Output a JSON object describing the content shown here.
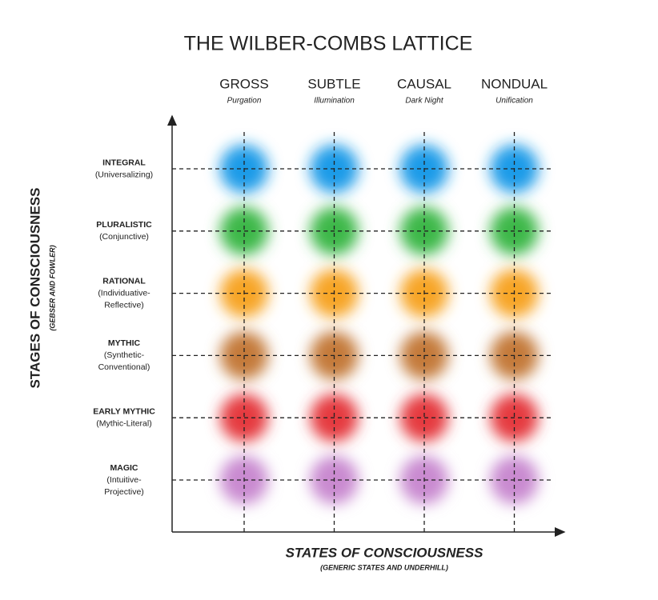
{
  "title": "THE WILBER-COMBS LATTICE",
  "columns": [
    {
      "name": "GROSS",
      "subtitle": "Purgation"
    },
    {
      "name": "SUBTLE",
      "subtitle": "Illumination"
    },
    {
      "name": "CAUSAL",
      "subtitle": "Dark Night"
    },
    {
      "name": "NONDUAL",
      "subtitle": "Unification"
    }
  ],
  "rows": [
    {
      "lines": [
        "INTEGRAL",
        "(Universalizing)"
      ],
      "color": "#1e9be8"
    },
    {
      "lines": [
        "PLURALISTIC",
        "(Conjunctive)"
      ],
      "color": "#3cb84a"
    },
    {
      "lines": [
        "RATIONAL",
        "(Individuative-",
        "Reflective)"
      ],
      "color": "#f7a527"
    },
    {
      "lines": [
        "MYTHIC",
        "(Synthetic-",
        "Conventional)"
      ],
      "color": "#c47a3a"
    },
    {
      "lines": [
        "EARLY MYTHIC",
        "(Mythic-Literal)"
      ],
      "color": "#e53a3f"
    },
    {
      "lines": [
        "MAGIC",
        "(Intuitive-",
        "Projective)"
      ],
      "color": "#c98ad0"
    }
  ],
  "y_axis": {
    "label": "STAGES OF CONSCIOUSNESS",
    "sublabel": "(GEBSER AND FOWLER)"
  },
  "x_axis": {
    "label": "STATES OF CONSCIOUSNESS",
    "sublabel": "(GENERIC STATES AND UNDERHILL)"
  }
}
